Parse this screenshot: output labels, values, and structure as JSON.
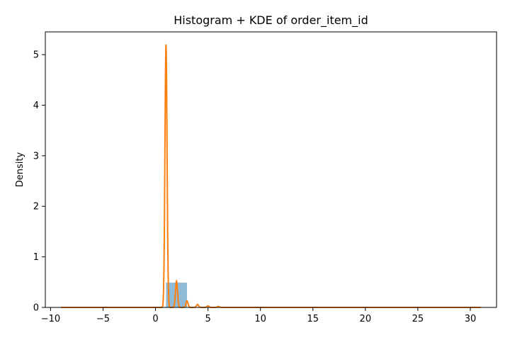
{
  "chart_data": {
    "type": "histogram",
    "title": "Histogram + KDE of order_item_id",
    "xlabel": "",
    "ylabel": "Density",
    "xlim": [
      -10.5,
      32.5
    ],
    "ylim": [
      0,
      5.45
    ],
    "x_ticks": [
      -10,
      -5,
      0,
      5,
      10,
      15,
      20,
      25,
      30
    ],
    "y_ticks": [
      0,
      1,
      2,
      3,
      4,
      5
    ],
    "grid": false,
    "histogram": {
      "bin_edges": [
        1,
        3,
        5,
        7,
        9,
        11,
        13,
        15,
        17,
        19,
        21
      ],
      "density": [
        0.49,
        0.006,
        0.002,
        0.001,
        0.0005,
        0.0003,
        0.0002,
        0.0001,
        0.0001,
        0.0001
      ],
      "color": "#1f77b4",
      "alpha": 0.5
    },
    "kde": {
      "x_range": [
        -9,
        31
      ],
      "peaks": [
        {
          "center": 1,
          "height": 5.2
        },
        {
          "center": 2,
          "height": 0.52
        },
        {
          "center": 3,
          "height": 0.13
        },
        {
          "center": 4,
          "height": 0.06
        },
        {
          "center": 5,
          "height": 0.03
        },
        {
          "center": 6,
          "height": 0.02
        }
      ],
      "bandwidth": 0.1,
      "color": "#ff7f0e"
    }
  }
}
